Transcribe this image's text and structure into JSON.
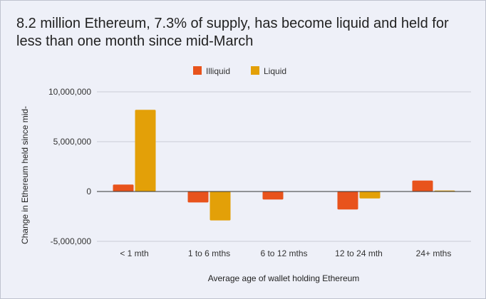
{
  "chart_data": {
    "type": "bar",
    "title": "8.2 million Ethereum, 7.3% of supply, has become liquid and held for less than one month since mid-March",
    "xlabel": "Average age of wallet holding Ethereum",
    "ylabel": "Change in Ethereum held since mid-",
    "categories": [
      "< 1 mth",
      "1 to 6 mths",
      "6 to 12 mths",
      "12 to 24 mth",
      "24+ mths"
    ],
    "series": [
      {
        "name": "Illiquid",
        "color": "#e8531c",
        "values": [
          700000,
          -1100000,
          -800000,
          -1800000,
          1100000
        ]
      },
      {
        "name": "Liquid",
        "color": "#e3a008",
        "values": [
          8200000,
          -2900000,
          0,
          -700000,
          100000
        ]
      }
    ],
    "ylim": [
      -5000000,
      10000000
    ],
    "yticks": [
      -5000000,
      0,
      5000000,
      10000000
    ],
    "ytick_labels": [
      "-5,000,000",
      "0",
      "5,000,000",
      "10,000,000"
    ],
    "grid": true,
    "legend_position": "top-center"
  }
}
